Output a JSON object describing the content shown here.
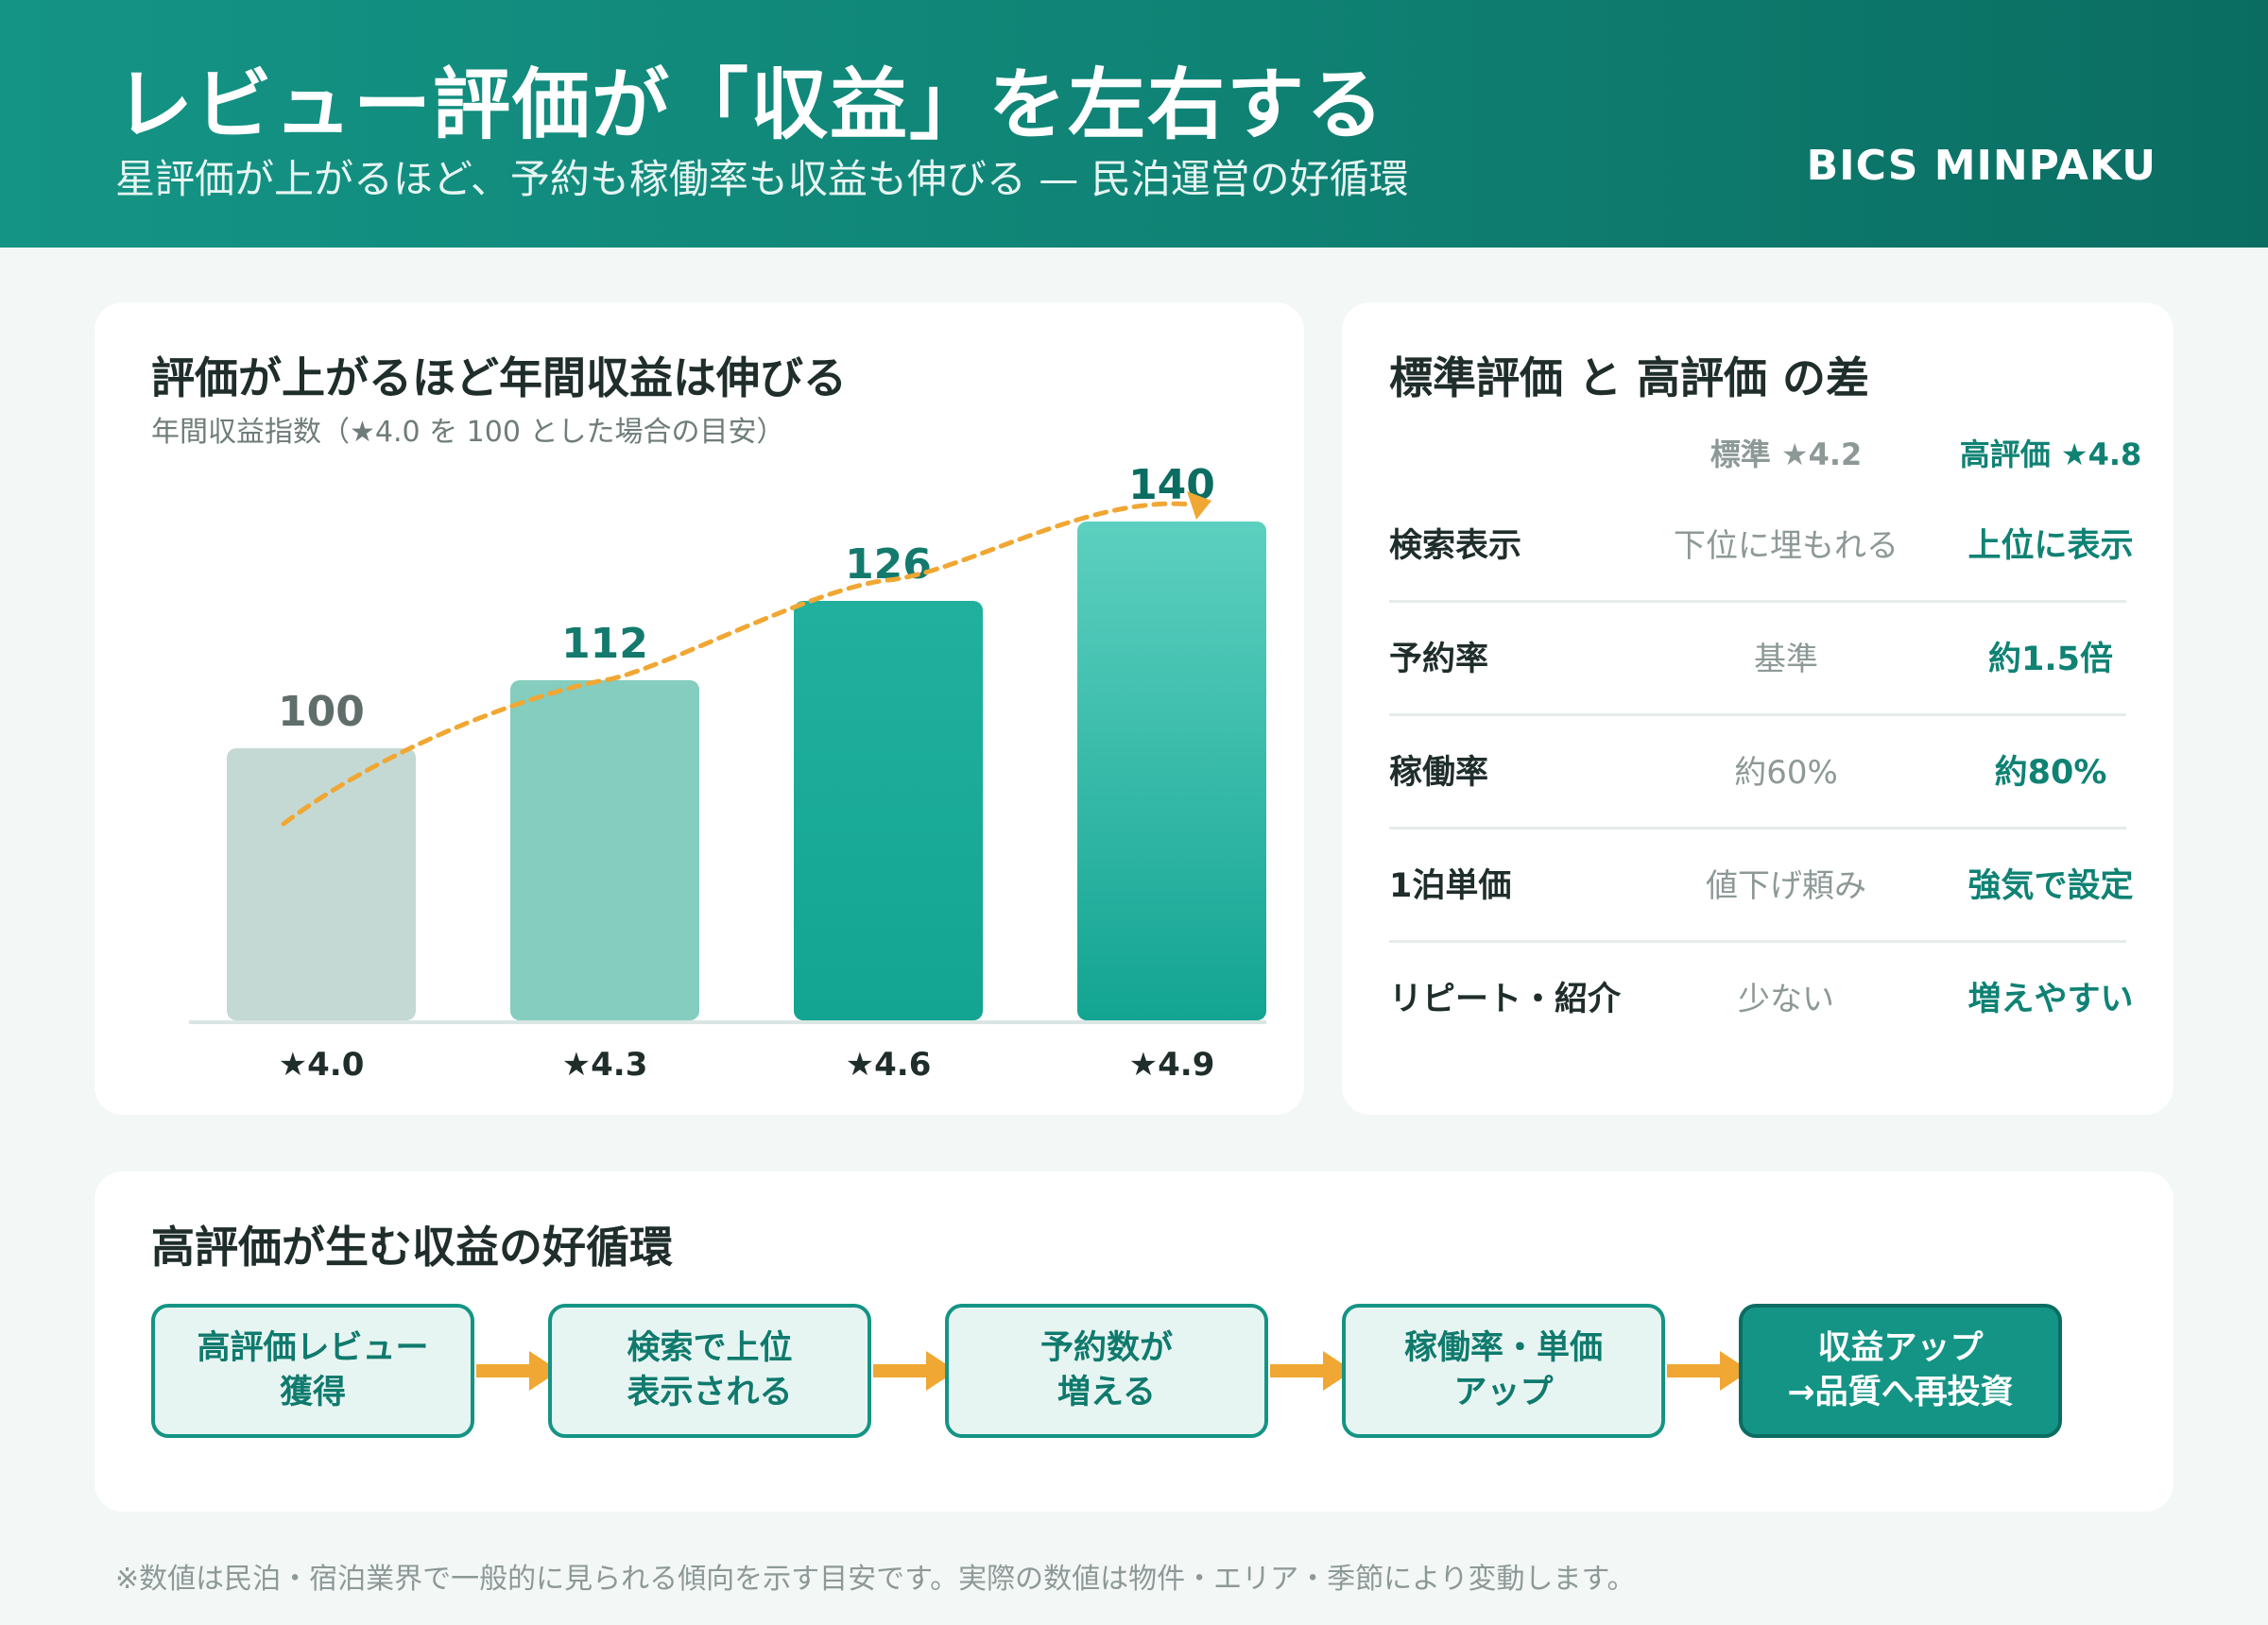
{
  "header": {
    "title": "レビュー評価が「収益」を左右する",
    "subtitle": "星評価が上がるほど、予約も稼働率も収益も伸びる — 民泊運営の好循環",
    "brand": "BICS MINPAKU"
  },
  "chart_card": {
    "title": "評価が上がるほど年間収益は伸びる",
    "subtitle": "年間収益指数（★4.0 を 100 とした場合の目安）"
  },
  "chart_data": {
    "type": "bar",
    "categories": [
      "★4.0",
      "★4.3",
      "★4.6",
      "★4.9"
    ],
    "values": [
      100,
      112,
      126,
      140
    ],
    "title": "評価が上がるほど年間収益は伸びる",
    "subtitle": "年間収益指数（★4.0 を 100 とした場合の目安）",
    "xlabel": "",
    "ylabel": "",
    "trend_line": true,
    "grid": false,
    "colors": {
      "bars": [
        "#c5d9d4",
        "#84cdbf",
        "#22b09e",
        "#33b9a7"
      ],
      "value_labels": [
        "#5f6e6b",
        "#137a6d",
        "#137a6d",
        "#0b6d62"
      ],
      "trend": "#f0a733"
    }
  },
  "compare": {
    "title": "標準評価 と 高評価 の差",
    "col_standard": "標準 ★4.2",
    "col_high": "高評価 ★4.8",
    "rows": [
      {
        "label": "検索表示",
        "standard": "下位に埋もれる",
        "high": "上位に表示"
      },
      {
        "label": "予約率",
        "standard": "基準",
        "high": "約1.5倍"
      },
      {
        "label": "稼働率",
        "standard": "約60%",
        "high": "約80%"
      },
      {
        "label": "1泊単価",
        "standard": "値下げ頼み",
        "high": "強気で設定"
      },
      {
        "label": "リピート・紹介",
        "standard": "少ない",
        "high": "増えやすい"
      }
    ]
  },
  "cycle": {
    "title": "高評価が生む収益の好循環",
    "steps": [
      {
        "line1": "高評価レビュー",
        "line2": "獲得"
      },
      {
        "line1": "検索で上位",
        "line2": "表示される"
      },
      {
        "line1": "予約数が",
        "line2": "増える"
      },
      {
        "line1": "稼働率・単価",
        "line2": "アップ"
      },
      {
        "line1": "収益アップ",
        "line2": "→品質へ再投資"
      }
    ]
  },
  "footnote": "※数値は民泊・宿泊業界で一般的に見られる傾向を示す目安です。実際の数値は物件・エリア・季節により変動します。"
}
